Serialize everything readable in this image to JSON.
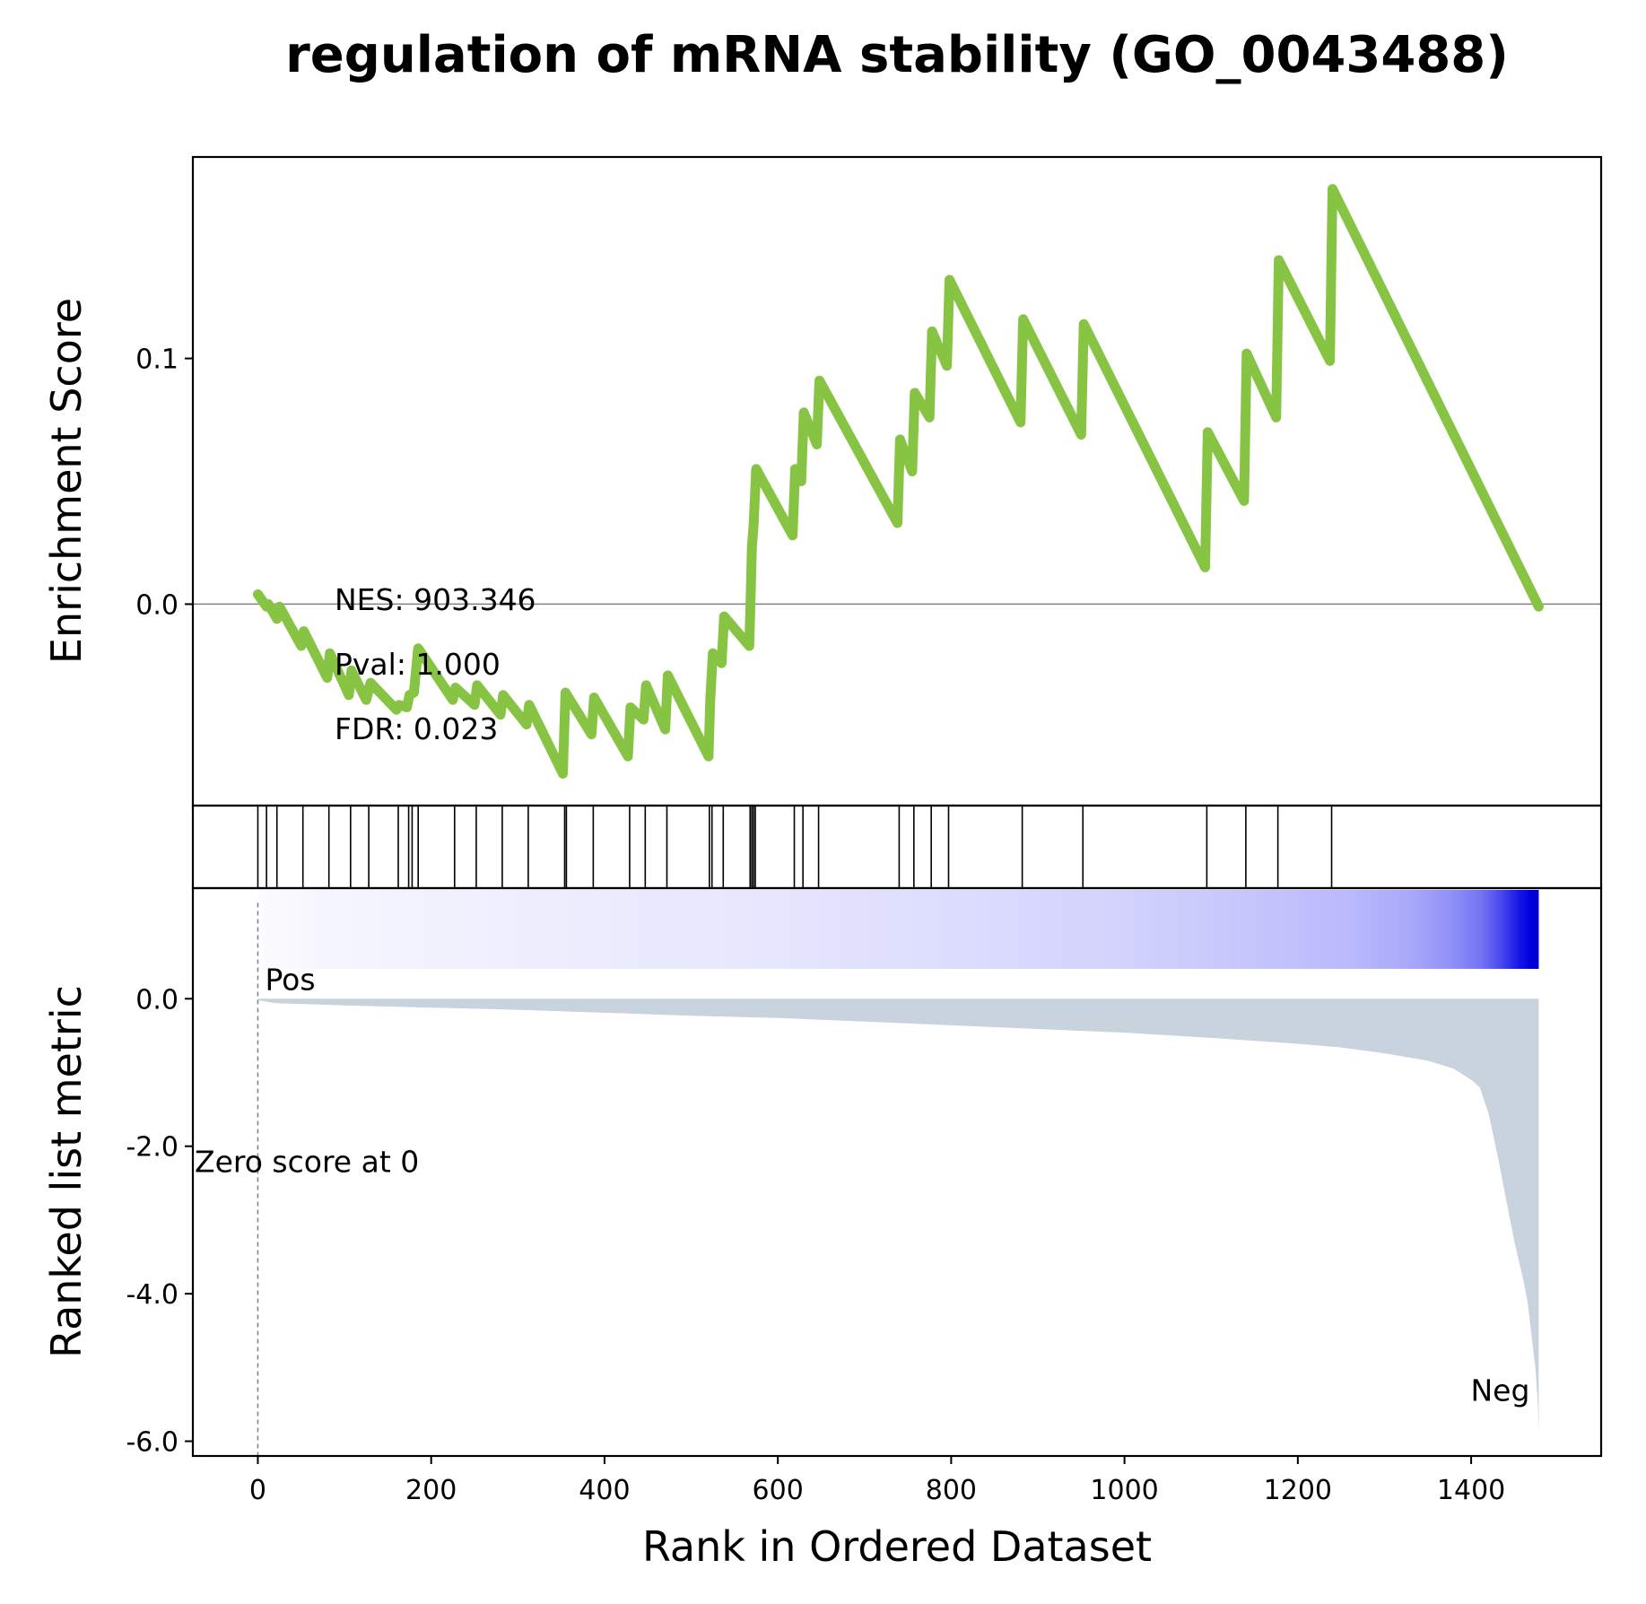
{
  "chart_data": {
    "type": "line",
    "title": "regulation of mRNA stability (GO_0043488)",
    "xlabel": "Rank in Ordered Dataset",
    "xlim": [
      -75,
      1550
    ],
    "x_ticks": [
      0,
      200,
      400,
      600,
      800,
      1000,
      1200,
      1400
    ],
    "enrichment": {
      "ylabel": "Enrichment Score",
      "ylim": [
        -0.082,
        0.182
      ],
      "y_ticks": [
        0.0,
        0.1
      ],
      "y_tick_labels": [
        "0.0",
        "0.1"
      ],
      "zero_line": true,
      "line_color": "#88c444",
      "stats": {
        "nes": "NES: 903.346",
        "pval": "Pval: 1.000",
        "fdr": "FDR: 0.023"
      },
      "points": [
        [
          0,
          0.004
        ],
        [
          10,
          -0.001
        ],
        [
          12,
          0.0
        ],
        [
          22,
          -0.006
        ],
        [
          25,
          -0.001
        ],
        [
          50,
          -0.017
        ],
        [
          53,
          -0.011
        ],
        [
          80,
          -0.03
        ],
        [
          83,
          -0.02
        ],
        [
          105,
          -0.037
        ],
        [
          108,
          -0.027
        ],
        [
          125,
          -0.039
        ],
        [
          130,
          -0.032
        ],
        [
          160,
          -0.043
        ],
        [
          163,
          -0.041
        ],
        [
          172,
          -0.042
        ],
        [
          175,
          -0.037
        ],
        [
          180,
          -0.036
        ],
        [
          185,
          -0.018
        ],
        [
          225,
          -0.039
        ],
        [
          228,
          -0.034
        ],
        [
          250,
          -0.041
        ],
        [
          253,
          -0.033
        ],
        [
          280,
          -0.045
        ],
        [
          283,
          -0.037
        ],
        [
          310,
          -0.049
        ],
        [
          313,
          -0.041
        ],
        [
          352,
          -0.069
        ],
        [
          355,
          -0.036
        ],
        [
          385,
          -0.053
        ],
        [
          388,
          -0.038
        ],
        [
          427,
          -0.062
        ],
        [
          430,
          -0.042
        ],
        [
          445,
          -0.047
        ],
        [
          448,
          -0.033
        ],
        [
          470,
          -0.051
        ],
        [
          473,
          -0.029
        ],
        [
          520,
          -0.062
        ],
        [
          522,
          -0.039
        ],
        [
          525,
          -0.02
        ],
        [
          535,
          -0.024
        ],
        [
          538,
          -0.005
        ],
        [
          567,
          -0.017
        ],
        [
          569,
          0.008
        ],
        [
          570,
          0.023
        ],
        [
          572,
          0.032
        ],
        [
          575,
          0.055
        ],
        [
          617,
          0.028
        ],
        [
          620,
          0.055
        ],
        [
          627,
          0.05
        ],
        [
          630,
          0.078
        ],
        [
          645,
          0.065
        ],
        [
          648,
          0.091
        ],
        [
          738,
          0.033
        ],
        [
          741,
          0.067
        ],
        [
          755,
          0.054
        ],
        [
          758,
          0.086
        ],
        [
          775,
          0.076
        ],
        [
          778,
          0.111
        ],
        [
          795,
          0.097
        ],
        [
          798,
          0.132
        ],
        [
          880,
          0.074
        ],
        [
          883,
          0.116
        ],
        [
          950,
          0.069
        ],
        [
          953,
          0.114
        ],
        [
          1093,
          0.015
        ],
        [
          1096,
          0.07
        ],
        [
          1138,
          0.042
        ],
        [
          1141,
          0.102
        ],
        [
          1175,
          0.076
        ],
        [
          1178,
          0.14
        ],
        [
          1237,
          0.099
        ],
        [
          1240,
          0.169
        ],
        [
          1478,
          -0.001
        ]
      ]
    },
    "hits": [
      0,
      10,
      22,
      52,
      82,
      107,
      128,
      162,
      174,
      178,
      185,
      227,
      252,
      282,
      312,
      354,
      356,
      387,
      429,
      447,
      472,
      521,
      524,
      537,
      568,
      570,
      572,
      574,
      619,
      629,
      647,
      740,
      757,
      777,
      797,
      882,
      952,
      1095,
      1140,
      1177,
      1239
    ],
    "heatmap": {
      "x_range": [
        0,
        1478
      ],
      "color_stops": [
        [
          0.0,
          "#fcfbff"
        ],
        [
          0.05,
          "#f6f6fe"
        ],
        [
          0.12,
          "#f2f2fe"
        ],
        [
          0.26,
          "#ececfe"
        ],
        [
          0.4,
          "#e6e6fe"
        ],
        [
          0.55,
          "#dcdcfe"
        ],
        [
          0.66,
          "#d4d4fd"
        ],
        [
          0.77,
          "#c6c6fc"
        ],
        [
          0.85,
          "#babafc"
        ],
        [
          0.9,
          "#a8a8fa"
        ],
        [
          0.93,
          "#9292f8"
        ],
        [
          0.955,
          "#7474f4"
        ],
        [
          0.97,
          "#4a4af0"
        ],
        [
          0.985,
          "#1616e6"
        ],
        [
          0.993,
          "#0000e0"
        ],
        [
          1.0,
          "#0000cc"
        ]
      ]
    },
    "ranked_metric": {
      "ylabel": "Ranked list metric",
      "ylim": [
        -6.2,
        1.5
      ],
      "y_ticks": [
        0,
        -2,
        -4,
        -6
      ],
      "y_tick_labels": [
        "0.0",
        "-2.0",
        "-4.0",
        "-6.0"
      ],
      "fill_color": "#c8d3dd",
      "pos_label": "Pos",
      "neg_label": "Neg",
      "pos_color": "#ff0000",
      "neg_color": "#0000ff",
      "zero_cross_label": "Zero score at 0",
      "points": [
        [
          0,
          -0.02
        ],
        [
          20,
          -0.06
        ],
        [
          100,
          -0.09
        ],
        [
          200,
          -0.12
        ],
        [
          300,
          -0.15
        ],
        [
          400,
          -0.19
        ],
        [
          500,
          -0.23
        ],
        [
          600,
          -0.26
        ],
        [
          700,
          -0.31
        ],
        [
          800,
          -0.36
        ],
        [
          900,
          -0.41
        ],
        [
          1000,
          -0.46
        ],
        [
          1100,
          -0.53
        ],
        [
          1200,
          -0.61
        ],
        [
          1250,
          -0.66
        ],
        [
          1300,
          -0.74
        ],
        [
          1350,
          -0.84
        ],
        [
          1380,
          -0.95
        ],
        [
          1400,
          -1.1
        ],
        [
          1410,
          -1.2
        ],
        [
          1420,
          -1.55
        ],
        [
          1430,
          -2.1
        ],
        [
          1440,
          -2.7
        ],
        [
          1450,
          -3.3
        ],
        [
          1460,
          -3.8
        ],
        [
          1465,
          -4.1
        ],
        [
          1470,
          -4.6
        ],
        [
          1474,
          -5.0
        ],
        [
          1477,
          -5.5
        ],
        [
          1478,
          -5.9
        ]
      ]
    }
  }
}
